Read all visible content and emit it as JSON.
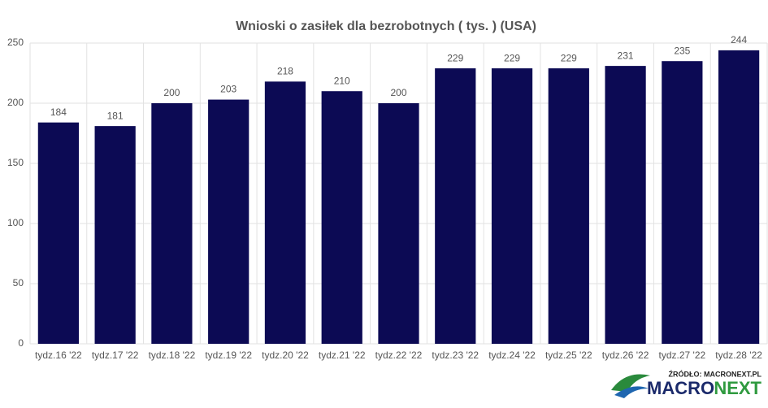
{
  "chart_data": {
    "type": "bar",
    "title": "Wnioski o zasiłek dla bezrobotnych ( tys. ) (USA)",
    "categories": [
      "tydz.16 '22",
      "tydz.17 '22",
      "tydz.18 '22",
      "tydz.19 '22",
      "tydz.20 '22",
      "tydz.21 '22",
      "tydz.22 '22",
      "tydz.23 '22",
      "tydz.24 '22",
      "tydz.25 '22",
      "tydz.26 '22",
      "tydz.27 '22",
      "tydz.28 '22"
    ],
    "values": [
      184,
      181,
      200,
      203,
      218,
      210,
      200,
      229,
      229,
      229,
      231,
      235,
      244
    ],
    "color": "#0c0a54",
    "ylim": [
      0,
      250
    ],
    "yticks": [
      0,
      50,
      100,
      150,
      200,
      250
    ],
    "grid": true,
    "source": "ŹRÓDŁO: MACRONEXT.PL",
    "logo": [
      "MACRO",
      "NEXT"
    ]
  }
}
